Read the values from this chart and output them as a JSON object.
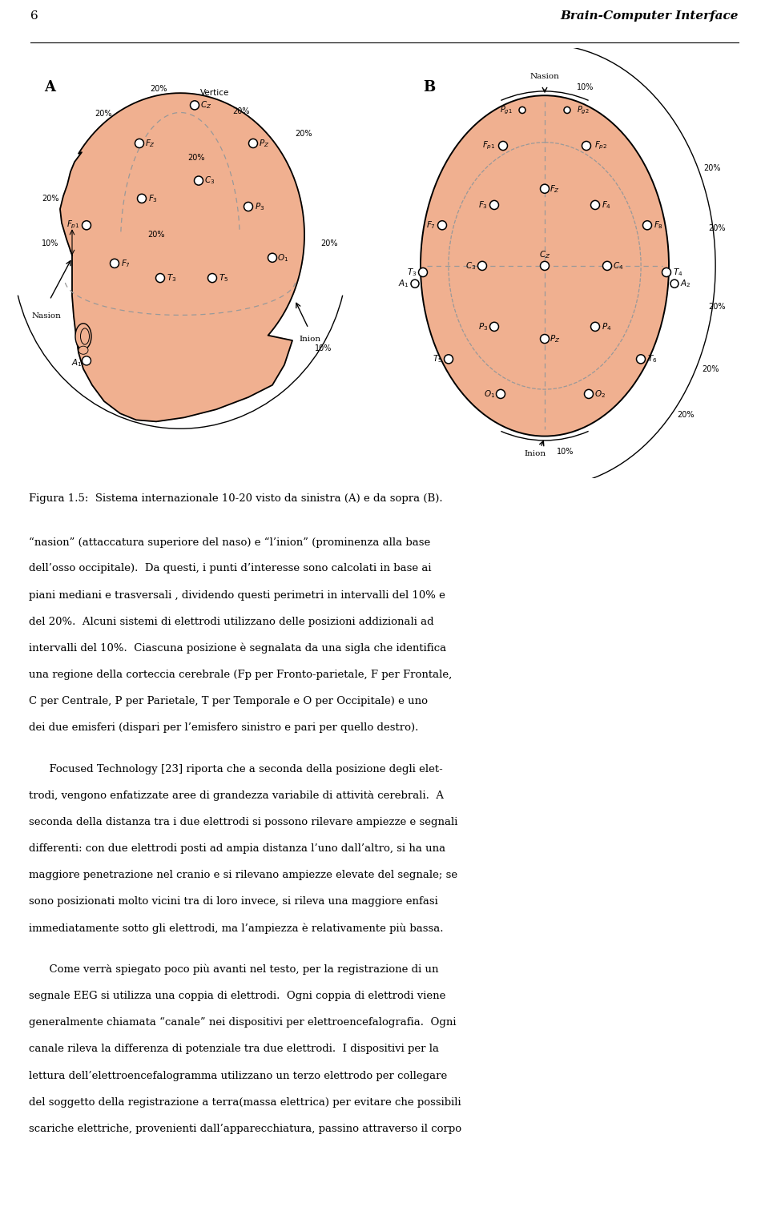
{
  "page_number": "6",
  "header_title": "Brain-Computer Interface",
  "figure_caption": "Figura 1.5:  Sistema internazionale 10-20 visto da sinistra (A) e da sopra (B).",
  "skin_color": "#F0B090",
  "bg_color": "#FFFFFF",
  "label_A": "A",
  "label_B": "B",
  "body_paragraphs": [
    {
      "indent": false,
      "lines": [
        "“nasion” (attaccatura superiore del naso) e “l’inion” (prominenza alla base",
        "dell’osso occipitale).  Da questi, i punti d’interesse sono calcolati in base ai",
        "piani mediani e trasversali , dividendo questi perimetri in intervalli del 10% e",
        "del 20%.  Alcuni sistemi di elettrodi utilizzano delle posizioni addizionali ad",
        "intervalli del 10%.  Ciascuna posizione è segnalata da una sigla che identifica",
        "una regione della corteccia cerebrale (Fp per Fronto-parietale, F per Frontale,",
        "C per Centrale, P per Parietale, T per Temporale e O per Occipitale) e uno",
        "dei due emisferi (dispari per l’emisfero sinistro e pari per quello destro)."
      ]
    },
    {
      "indent": true,
      "lines": [
        "Focused Technology [23] riporta che a seconda della posizione degli elet-",
        "trodi, vengono enfatizzate aree di grandezza variabile di attività cerebrali.  A",
        "seconda della distanza tra i due elettrodi si possono rilevare ampiezze e segnali",
        "differenti: con due elettrodi posti ad ampia distanza l’uno dall’altro, si ha una",
        "maggiore penetrazione nel cranio e si rilevano ampiezze elevate del segnale; se",
        "sono posizionati molto vicini tra di loro invece, si rileva una maggiore enfasi",
        "immediatamente sotto gli elettrodi, ma l’ampiezza è relativamente più bassa."
      ]
    },
    {
      "indent": true,
      "lines": [
        "Come verrà spiegato poco più avanti nel testo, per la registrazione di un",
        "segnale EEG si utilizza una coppia di elettrodi.  Ogni coppia di elettrodi viene",
        "generalmente chiamata “canale” nei dispositivi per elettroencefalografia.  Ogni",
        "canale rileva la differenza di potenziale tra due elettrodi.  I dispositivi per la",
        "lettura dell’elettroencefalogramma utilizzano un terzo elettrodo per collegare",
        "del soggetto della registrazione a terra(massa elettrica) per evitare che possibili",
        "scariche elettriche, provenienti dall’apparecchiatura, passino attraverso il corpo"
      ]
    }
  ]
}
